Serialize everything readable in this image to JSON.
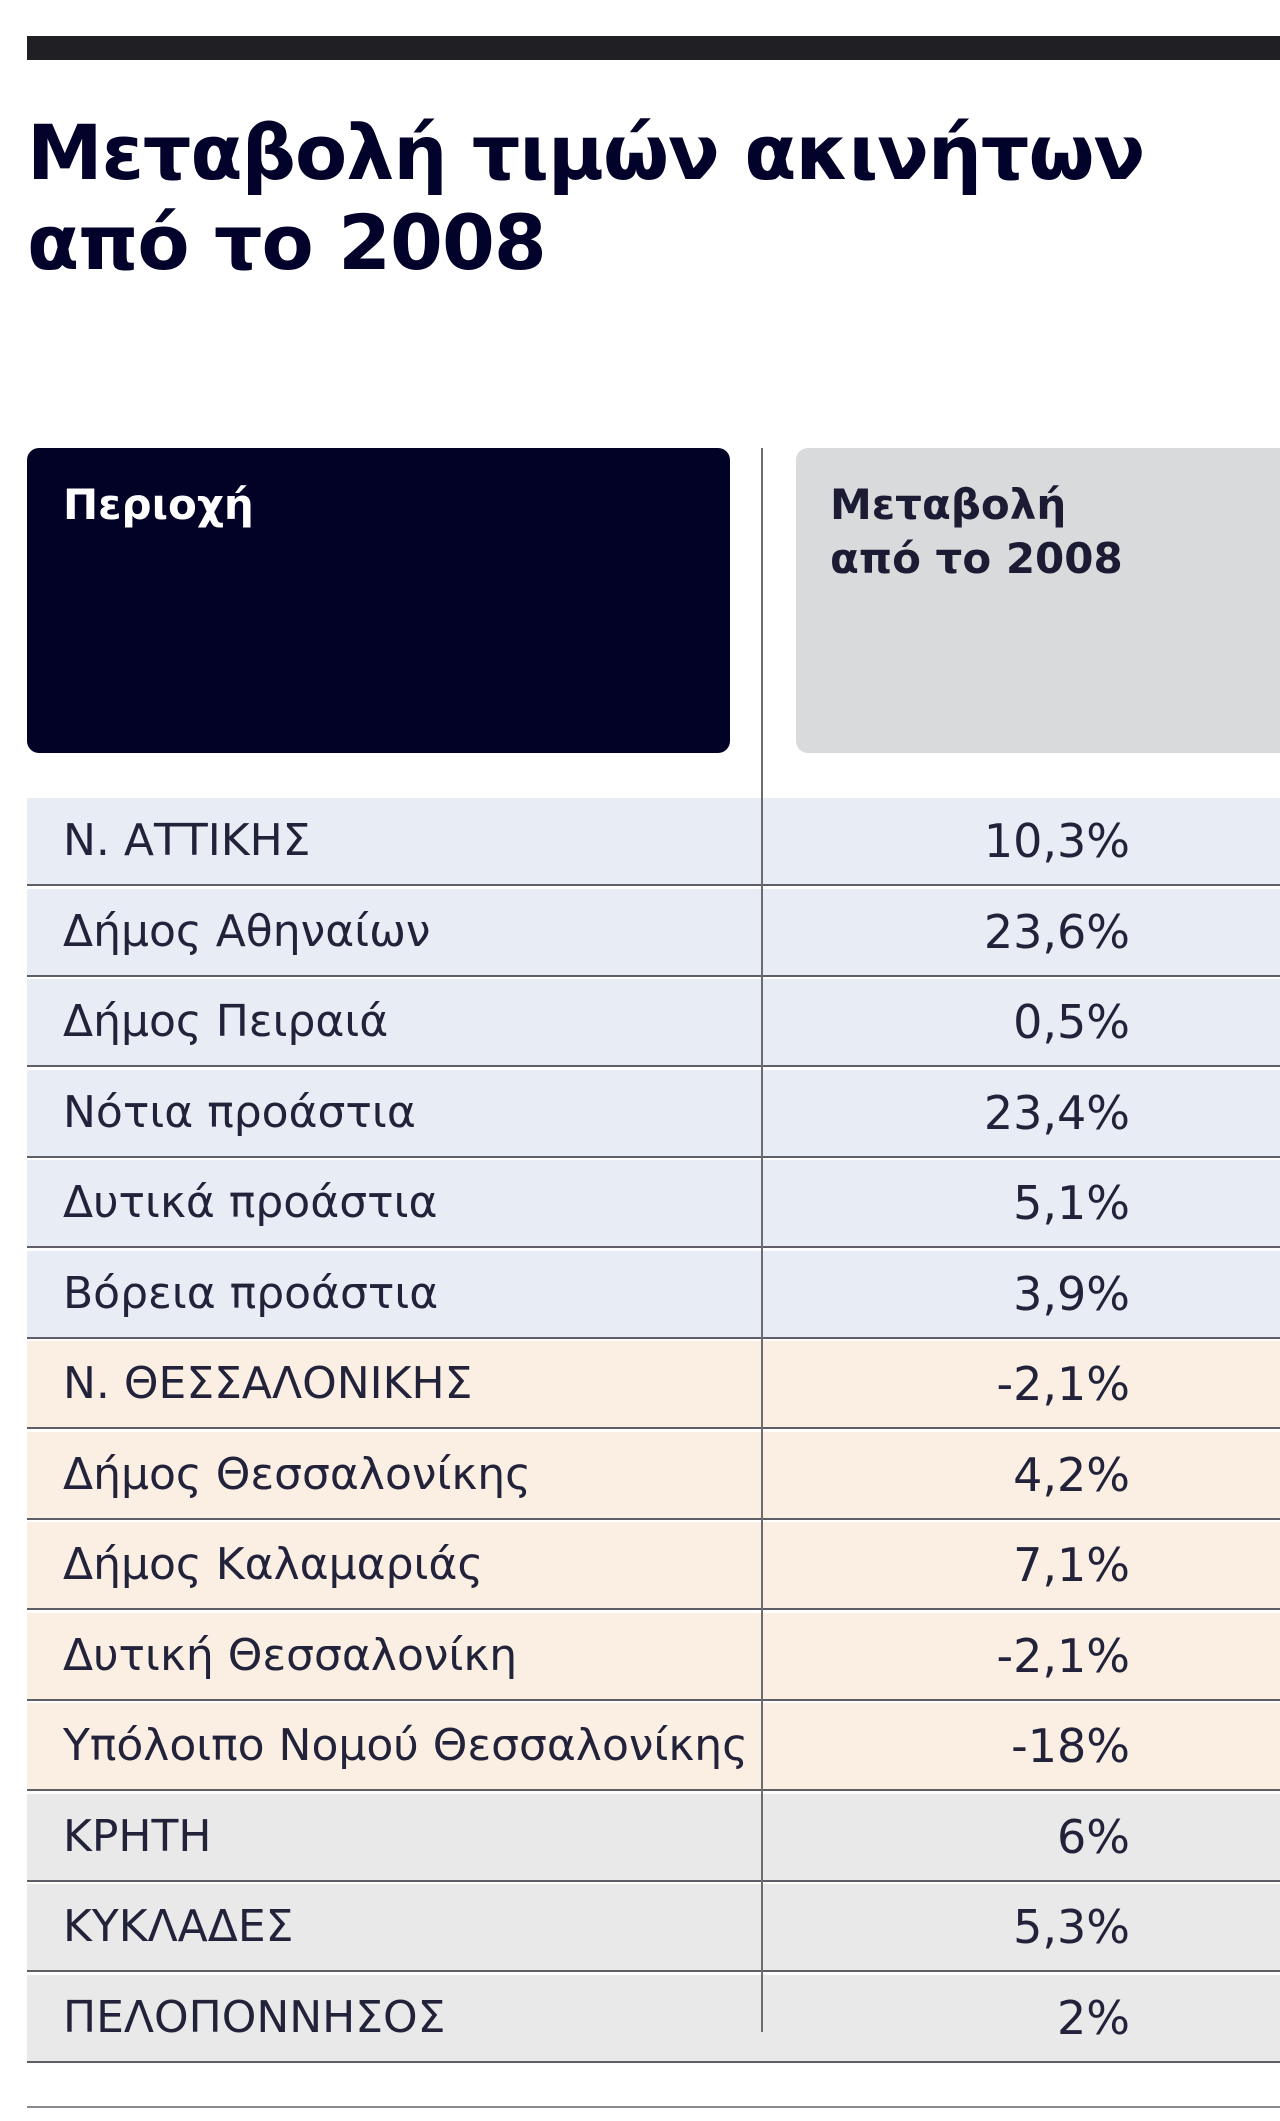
{
  "title": {
    "line1": "Μεταβολή τιμών ακινήτων",
    "line2": "από το 2008"
  },
  "header": {
    "col1": "Περιοχή",
    "col2_line1": "Μεταβολή",
    "col2_line2": "από το 2008"
  },
  "colors": {
    "attica_row": "#e8ecf4",
    "thessaloniki_row": "#fbefe4",
    "other_row": "#e9e9ea",
    "header_dark": "#020226",
    "header_light": "#d8dadb"
  },
  "chart_data": {
    "type": "table",
    "title": "Μεταβολή τιμών ακινήτων από το 2008",
    "columns": [
      "Περιοχή",
      "Μεταβολή από το 2008"
    ],
    "rows": [
      {
        "region": "Ν. ΑΤΤΙΚΗΣ",
        "change": "10,3%",
        "group": "attica"
      },
      {
        "region": "Δήμος Αθηναίων",
        "change": "23,6%",
        "group": "attica"
      },
      {
        "region": "Δήμος Πειραιά",
        "change": "0,5%",
        "group": "attica"
      },
      {
        "region": "Νότια προάστια",
        "change": "23,4%",
        "group": "attica"
      },
      {
        "region": "Δυτικά προάστια",
        "change": "5,1%",
        "group": "attica"
      },
      {
        "region": "Βόρεια προάστια",
        "change": "3,9%",
        "group": "attica"
      },
      {
        "region": "Ν. ΘΕΣΣΑΛΟΝΙΚΗΣ",
        "change": "-2,1%",
        "group": "thessaloniki"
      },
      {
        "region": "Δήμος Θεσσαλονίκης",
        "change": "4,2%",
        "group": "thessaloniki"
      },
      {
        "region": "Δήμος Καλαμαριάς",
        "change": "7,1%",
        "group": "thessaloniki"
      },
      {
        "region": "Δυτική Θεσσαλονίκη",
        "change": "-2,1%",
        "group": "thessaloniki"
      },
      {
        "region": "Υπόλοιπο Νομού Θεσσαλονίκης",
        "change": "-18%",
        "group": "thessaloniki"
      },
      {
        "region": "ΚΡΗΤΗ",
        "change": "6%",
        "group": "other"
      },
      {
        "region": "ΚΥΚΛΑΔΕΣ",
        "change": "5,3%",
        "group": "other"
      },
      {
        "region": "ΠΕΛΟΠΟΝΝΗΣΟΣ",
        "change": "2%",
        "group": "other"
      }
    ]
  }
}
